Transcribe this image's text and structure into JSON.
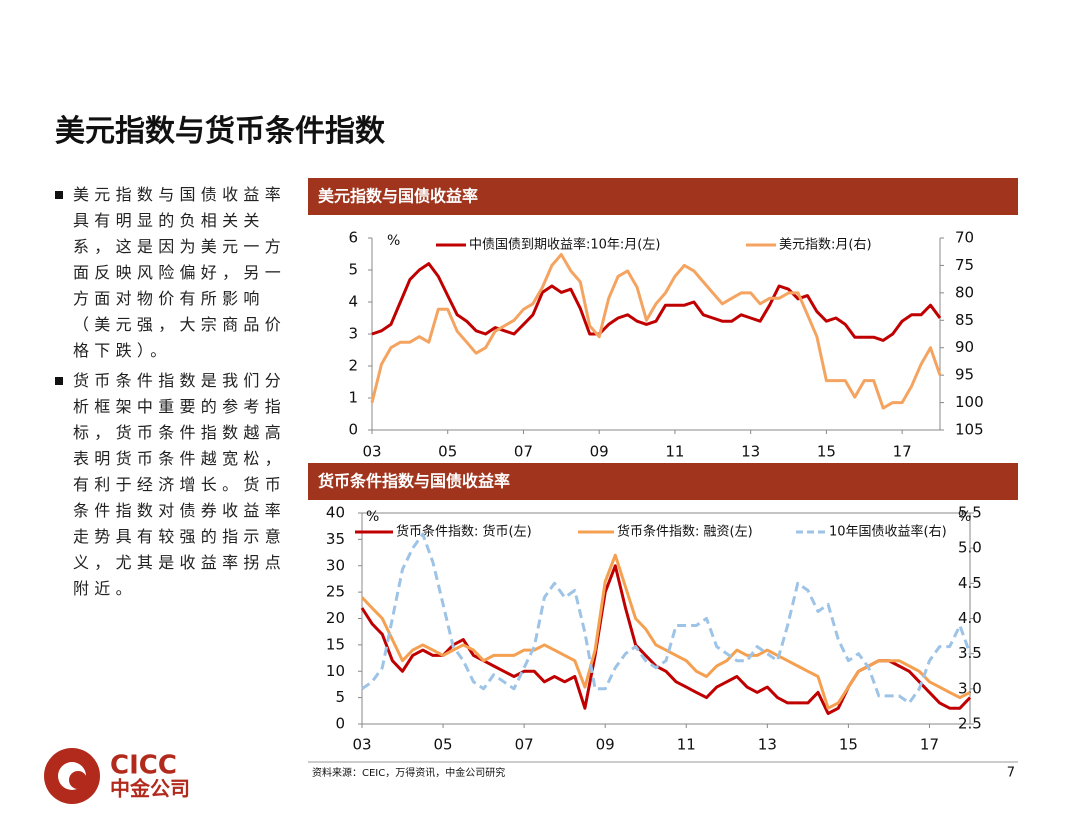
{
  "title": "美元指数与货币条件指数",
  "bullets": [
    "美元指数与国债收益率具有明显的负相关关系，这是因为美元一方面反映风险偏好，另一方面对物价有所影响（美元强，大宗商品价格下跌）。",
    "货币条件指数是我们分析框架中重要的参考指标，货币条件指数越高表明货币条件越宽松，有利于经济增长。货币条件指数对债券收益率走势具有较强的指示意义，尤其是收益率拐点附近。"
  ],
  "source": "资料来源：CEIC，万得资讯，中金公司研究",
  "page_number": "7",
  "logo": {
    "name": "CICC",
    "name_cn": "中金公司"
  },
  "chart_data": [
    {
      "type": "line",
      "title": "美元指数与国债收益率",
      "y_unit": "%",
      "x": [
        2003,
        2003.25,
        2003.5,
        2003.75,
        2004,
        2004.25,
        2004.5,
        2004.75,
        2005,
        2005.25,
        2005.5,
        2005.75,
        2006,
        2006.25,
        2006.5,
        2006.75,
        2007,
        2007.25,
        2007.5,
        2007.75,
        2008,
        2008.25,
        2008.5,
        2008.75,
        2009,
        2009.25,
        2009.5,
        2009.75,
        2010,
        2010.25,
        2010.5,
        2010.75,
        2011,
        2011.25,
        2011.5,
        2011.75,
        2012,
        2012.25,
        2012.5,
        2012.75,
        2013,
        2013.25,
        2013.5,
        2013.75,
        2014,
        2014.25,
        2014.5,
        2014.75,
        2015,
        2015.25,
        2015.5,
        2015.75,
        2016,
        2016.25,
        2016.5,
        2016.75,
        2017,
        2017.25,
        2017.5,
        2017.75,
        2018
      ],
      "series": [
        {
          "name": "中债国债到期收益率:10年:月(左)",
          "color": "#c00000",
          "values": [
            3.0,
            3.1,
            3.3,
            4.0,
            4.7,
            5.0,
            5.2,
            4.8,
            4.2,
            3.6,
            3.4,
            3.1,
            3.0,
            3.2,
            3.1,
            3.0,
            3.3,
            3.6,
            4.3,
            4.5,
            4.3,
            4.4,
            3.8,
            3.0,
            3.0,
            3.3,
            3.5,
            3.6,
            3.4,
            3.3,
            3.4,
            3.9,
            3.9,
            3.9,
            4.0,
            3.6,
            3.5,
            3.4,
            3.4,
            3.6,
            3.5,
            3.4,
            3.9,
            4.5,
            4.4,
            4.1,
            4.2,
            3.7,
            3.4,
            3.5,
            3.3,
            2.9,
            2.9,
            2.9,
            2.8,
            3.0,
            3.4,
            3.6,
            3.6,
            3.9,
            3.5
          ]
        },
        {
          "name": "美元指数:月(右)",
          "color": "#f4a460",
          "axis": "y2",
          "values": [
            100,
            93,
            90,
            89,
            89,
            88,
            89,
            83,
            83,
            87,
            89,
            91,
            90,
            87,
            86,
            85,
            83,
            82,
            79,
            75,
            73,
            76,
            78,
            86,
            88,
            81,
            77,
            76,
            79,
            85,
            82,
            80,
            77,
            75,
            76,
            78,
            80,
            82,
            81,
            80,
            80,
            82,
            81,
            81,
            80,
            80,
            84,
            88,
            96,
            96,
            96,
            99,
            96,
            96,
            101,
            100,
            100,
            97,
            93,
            90,
            95
          ]
        }
      ],
      "xlim": [
        2003,
        2018
      ],
      "xticks": [
        {
          "value": 2003,
          "label": "03"
        },
        {
          "value": 2005,
          "label": "05"
        },
        {
          "value": 2007,
          "label": "07"
        },
        {
          "value": 2009,
          "label": "09"
        },
        {
          "value": 2011,
          "label": "11"
        },
        {
          "value": 2013,
          "label": "13"
        },
        {
          "value": 2015,
          "label": "15"
        },
        {
          "value": 2017,
          "label": "17"
        }
      ],
      "ylim": [
        0,
        6
      ],
      "yticks": [
        0,
        1,
        2,
        3,
        4,
        5,
        6
      ],
      "y2lim": [
        105,
        70
      ],
      "y2ticks": [
        70,
        75,
        80,
        85,
        90,
        95,
        100,
        105
      ]
    },
    {
      "type": "line",
      "title": "货币条件指数与国债收益率",
      "y_unit": "%",
      "y2_unit": "%",
      "x": [
        2003,
        2003.25,
        2003.5,
        2003.75,
        2004,
        2004.25,
        2004.5,
        2004.75,
        2005,
        2005.25,
        2005.5,
        2005.75,
        2006,
        2006.25,
        2006.5,
        2006.75,
        2007,
        2007.25,
        2007.5,
        2007.75,
        2008,
        2008.25,
        2008.5,
        2008.75,
        2009,
        2009.25,
        2009.5,
        2009.75,
        2010,
        2010.25,
        2010.5,
        2010.75,
        2011,
        2011.25,
        2011.5,
        2011.75,
        2012,
        2012.25,
        2012.5,
        2012.75,
        2013,
        2013.25,
        2013.5,
        2013.75,
        2014,
        2014.25,
        2014.5,
        2014.75,
        2015,
        2015.25,
        2015.5,
        2015.75,
        2016,
        2016.25,
        2016.5,
        2016.75,
        2017,
        2017.25,
        2017.5,
        2017.75,
        2018
      ],
      "series": [
        {
          "name": "货币条件指数: 货币(左)",
          "color": "#c00000",
          "values": [
            22,
            19,
            17,
            12,
            10,
            13,
            14,
            13,
            13,
            15,
            16,
            13,
            12,
            11,
            10,
            9,
            10,
            10,
            8,
            9,
            8,
            9,
            3,
            13,
            25,
            30,
            22,
            15,
            13,
            11,
            10,
            8,
            7,
            6,
            5,
            7,
            8,
            9,
            7,
            6,
            7,
            5,
            4,
            4,
            4,
            6,
            2,
            3,
            7,
            10,
            11,
            12,
            12,
            11,
            10,
            8,
            6,
            4,
            3,
            3,
            5
          ]
        },
        {
          "name": "货币条件指数: 融资(左)",
          "color": "#f4a050",
          "values": [
            24,
            22,
            20,
            16,
            12,
            14,
            15,
            14,
            13,
            14,
            15,
            14,
            12,
            13,
            13,
            13,
            14,
            14,
            15,
            14,
            13,
            12,
            7,
            14,
            27,
            32,
            26,
            20,
            18,
            15,
            14,
            13,
            12,
            10,
            9,
            11,
            12,
            14,
            13,
            13,
            14,
            13,
            12,
            11,
            10,
            9,
            3,
            4,
            7,
            10,
            11,
            12,
            12,
            12,
            11,
            10,
            8,
            7,
            6,
            5,
            6
          ]
        },
        {
          "name": "10年国债收益率(右)",
          "color": "#9dc3e6",
          "axis": "y2",
          "dash": true,
          "values": [
            3.0,
            3.1,
            3.3,
            4.0,
            4.7,
            5.0,
            5.2,
            4.8,
            4.2,
            3.6,
            3.4,
            3.1,
            3.0,
            3.2,
            3.1,
            3.0,
            3.3,
            3.6,
            4.3,
            4.5,
            4.3,
            4.4,
            3.8,
            3.0,
            3.0,
            3.3,
            3.5,
            3.6,
            3.4,
            3.3,
            3.4,
            3.9,
            3.9,
            3.9,
            4.0,
            3.6,
            3.5,
            3.4,
            3.4,
            3.6,
            3.5,
            3.4,
            3.9,
            4.5,
            4.4,
            4.1,
            4.2,
            3.7,
            3.4,
            3.5,
            3.3,
            2.9,
            2.9,
            2.9,
            2.8,
            3.0,
            3.4,
            3.6,
            3.6,
            3.9,
            3.5
          ]
        }
      ],
      "xlim": [
        2003,
        2018
      ],
      "xticks": [
        {
          "value": 2003,
          "label": "03"
        },
        {
          "value": 2005,
          "label": "05"
        },
        {
          "value": 2007,
          "label": "07"
        },
        {
          "value": 2009,
          "label": "09"
        },
        {
          "value": 2011,
          "label": "11"
        },
        {
          "value": 2013,
          "label": "13"
        },
        {
          "value": 2015,
          "label": "15"
        },
        {
          "value": 2017,
          "label": "17"
        }
      ],
      "ylim": [
        0,
        40
      ],
      "yticks": [
        0,
        5,
        10,
        15,
        20,
        25,
        30,
        35,
        40
      ],
      "y2lim": [
        2.5,
        5.5
      ],
      "y2ticks": [
        2.5,
        {
          "value": 3,
          "label": "3.0"
        },
        3.5,
        {
          "value": 4,
          "label": "4.0"
        },
        4.5,
        {
          "value": 5,
          "label": "5.0"
        },
        5.5
      ]
    }
  ]
}
